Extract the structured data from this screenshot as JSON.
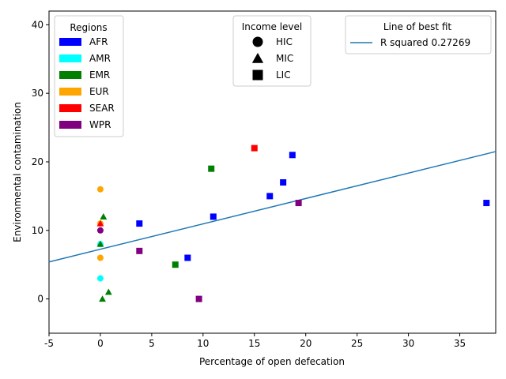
{
  "chart_data": {
    "type": "scatter",
    "title": "",
    "xlabel": "Percentage of open defecation",
    "ylabel": "Environmental contamination",
    "xlim": [
      -5,
      38.5
    ],
    "ylim": [
      -5,
      42
    ],
    "xticks": [
      -5,
      0,
      5,
      10,
      15,
      20,
      25,
      30,
      35
    ],
    "yticks": [
      0,
      10,
      20,
      30,
      40
    ],
    "grid": false,
    "regions": [
      {
        "name": "AFR",
        "color": "#0000ff"
      },
      {
        "name": "AMR",
        "color": "#00ffff"
      },
      {
        "name": "EMR",
        "color": "#008000"
      },
      {
        "name": "EUR",
        "color": "#ffa500"
      },
      {
        "name": "SEAR",
        "color": "#ff0000"
      },
      {
        "name": "WPR",
        "color": "#800080"
      }
    ],
    "income_levels": [
      {
        "name": "HIC",
        "marker": "circle"
      },
      {
        "name": "MIC",
        "marker": "triangle"
      },
      {
        "name": "LIC",
        "marker": "square"
      }
    ],
    "legends": {
      "regions_title": "Regions",
      "income_title": "Income level",
      "fit_title": "Line of best fit",
      "fit_label": "R squared 0.27269",
      "placement": [
        "top-left",
        "top-center",
        "top-right"
      ]
    },
    "fit_line": {
      "x": [
        -5,
        38.5
      ],
      "y": [
        5.4,
        21.5
      ],
      "color": "#1f77b4"
    },
    "points": [
      {
        "x": 0,
        "y": 16,
        "region": "EUR",
        "income": "HIC"
      },
      {
        "x": 0,
        "y": 11,
        "region": "EUR",
        "income": "HIC"
      },
      {
        "x": 0,
        "y": 11,
        "region": "SEAR",
        "income": "MIC"
      },
      {
        "x": 0,
        "y": 10,
        "region": "WPR",
        "income": "HIC"
      },
      {
        "x": 0,
        "y": 8,
        "region": "AMR",
        "income": "HIC"
      },
      {
        "x": 0,
        "y": 8,
        "region": "EMR",
        "income": "MIC"
      },
      {
        "x": 0,
        "y": 6,
        "region": "EUR",
        "income": "HIC"
      },
      {
        "x": 0,
        "y": 3,
        "region": "AMR",
        "income": "HIC"
      },
      {
        "x": 0.3,
        "y": 12,
        "region": "EMR",
        "income": "MIC"
      },
      {
        "x": 0.2,
        "y": 0,
        "region": "EMR",
        "income": "MIC"
      },
      {
        "x": 0.8,
        "y": 1,
        "region": "EMR",
        "income": "MIC"
      },
      {
        "x": 3.8,
        "y": 11,
        "region": "AFR",
        "income": "LIC"
      },
      {
        "x": 3.8,
        "y": 7,
        "region": "WPR",
        "income": "LIC"
      },
      {
        "x": 7.3,
        "y": 5,
        "region": "EMR",
        "income": "LIC"
      },
      {
        "x": 8.5,
        "y": 6,
        "region": "AFR",
        "income": "LIC"
      },
      {
        "x": 9.6,
        "y": 0,
        "region": "WPR",
        "income": "LIC"
      },
      {
        "x": 10.8,
        "y": 19,
        "region": "EMR",
        "income": "LIC"
      },
      {
        "x": 11,
        "y": 12,
        "region": "AFR",
        "income": "LIC"
      },
      {
        "x": 15,
        "y": 22,
        "region": "SEAR",
        "income": "LIC"
      },
      {
        "x": 16.5,
        "y": 15,
        "region": "AFR",
        "income": "LIC"
      },
      {
        "x": 17.8,
        "y": 17,
        "region": "AFR",
        "income": "LIC"
      },
      {
        "x": 18.7,
        "y": 21,
        "region": "AFR",
        "income": "LIC"
      },
      {
        "x": 19.3,
        "y": 14,
        "region": "WPR",
        "income": "LIC"
      },
      {
        "x": 37.6,
        "y": 14,
        "region": "AFR",
        "income": "LIC"
      }
    ]
  }
}
